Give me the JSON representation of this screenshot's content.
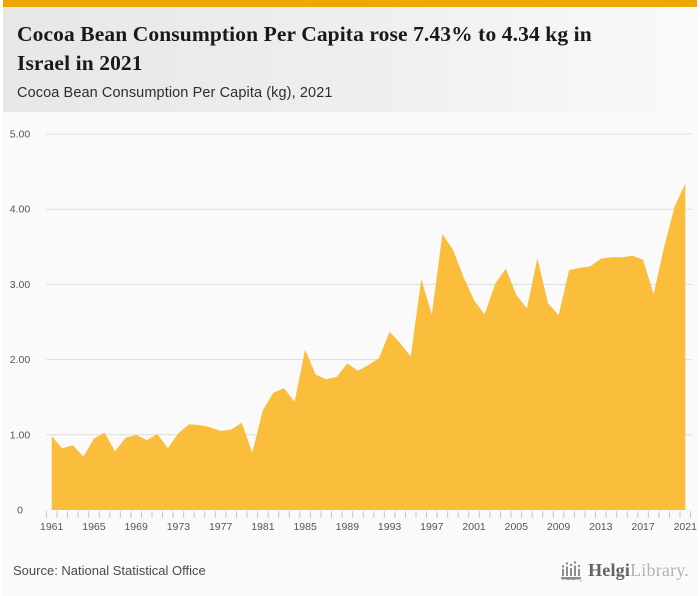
{
  "header": {
    "title": "Cocoa Bean Consumption Per Capita rose 7.43% to 4.34 kg in Israel in 2021",
    "subtitle": "Cocoa Bean Consumption Per Capita (kg), 2021"
  },
  "footer": {
    "source": "Source: National Statistical Office",
    "logo": {
      "part1": "Helgi",
      "part2": "Library."
    }
  },
  "colors": {
    "accent_bar": "#F0A800",
    "area_fill": "#FABD3C",
    "grid_line": "#DDDDDD",
    "axis_text": "#555555",
    "tick_mark": "#BCC6DA",
    "chart_bg": "#FAFAFA"
  },
  "chart_data": {
    "type": "area",
    "title": "Cocoa Bean Consumption Per Capita (kg), 2021",
    "xlabel": "",
    "ylabel": "",
    "legend": "none",
    "grid": "horizontal",
    "ylim": [
      0,
      5
    ],
    "y_ticks": [
      0,
      1,
      2,
      3,
      4,
      5
    ],
    "y_tick_labels": [
      "0",
      "1.00",
      "2.00",
      "3.00",
      "4.00",
      "5.00"
    ],
    "x_label_step": 4,
    "x": [
      1961,
      1962,
      1963,
      1964,
      1965,
      1966,
      1967,
      1968,
      1969,
      1970,
      1971,
      1972,
      1973,
      1974,
      1975,
      1976,
      1977,
      1978,
      1979,
      1980,
      1981,
      1982,
      1983,
      1984,
      1985,
      1986,
      1987,
      1988,
      1989,
      1990,
      1991,
      1992,
      1993,
      1994,
      1995,
      1996,
      1997,
      1998,
      1999,
      2000,
      2001,
      2002,
      2003,
      2004,
      2005,
      2006,
      2007,
      2008,
      2009,
      2010,
      2011,
      2012,
      2013,
      2014,
      2015,
      2016,
      2017,
      2018,
      2019,
      2020,
      2021
    ],
    "values": [
      0.98,
      0.82,
      0.86,
      0.71,
      0.95,
      1.03,
      0.78,
      0.96,
      1.0,
      0.93,
      1.01,
      0.82,
      1.02,
      1.14,
      1.13,
      1.1,
      1.05,
      1.07,
      1.16,
      0.76,
      1.33,
      1.56,
      1.62,
      1.44,
      2.13,
      1.8,
      1.74,
      1.77,
      1.95,
      1.85,
      1.93,
      2.02,
      2.37,
      2.22,
      2.04,
      3.07,
      2.6,
      3.67,
      3.46,
      3.1,
      2.79,
      2.6,
      3.01,
      3.21,
      2.86,
      2.68,
      3.35,
      2.75,
      2.59,
      3.19,
      3.22,
      3.24,
      3.34,
      3.36,
      3.36,
      3.38,
      3.33,
      2.87,
      3.5,
      4.04,
      4.34
    ]
  }
}
